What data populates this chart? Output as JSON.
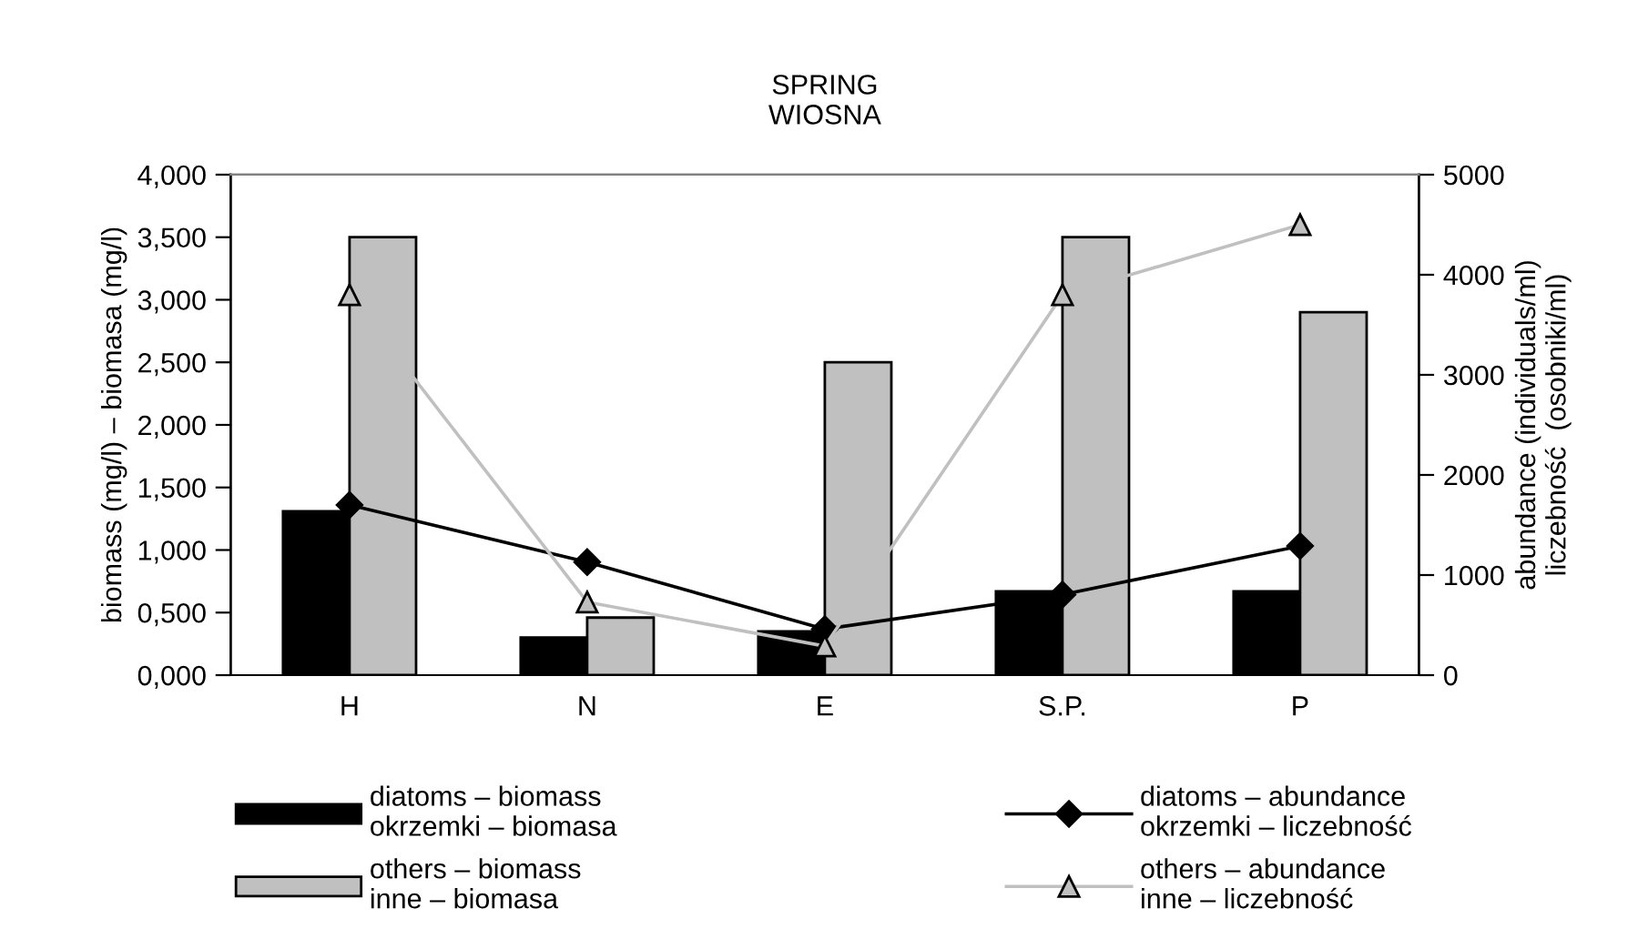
{
  "chart_data": {
    "type": "bar",
    "title": "SPRING\nWIOSNA",
    "ylabel": "biomass (mg/l) – biomasa (mg/l)",
    "y2label": "abundance (individuals/ml)\nliczebność  (osobniki/ml)",
    "categories": [
      "H",
      "N",
      "E",
      "S.P.",
      "P"
    ],
    "series": [
      {
        "name": "diatoms – biomass\nokrzemki – biomasa",
        "color": "#000000",
        "values": [
          1.31,
          0.3,
          0.35,
          0.67,
          0.67
        ]
      },
      {
        "name": "others – biomass\ninne – biomasa",
        "color": "#c0c0c0",
        "values": [
          3.5,
          0.46,
          2.5,
          3.5,
          2.9
        ]
      },
      {
        "name": "diatoms – abundance\nokrzemki – liczebność",
        "type": "line",
        "axis": "y2",
        "marker": "diamond",
        "color": "#000000",
        "values": [
          1700,
          1130,
          460,
          805,
          1290
        ]
      },
      {
        "name": "others – abundance\ninne – liczebność",
        "type": "line",
        "axis": "y2",
        "marker": "triangle",
        "color": "#c0c0c0",
        "values": [
          3800,
          730,
          290,
          3800,
          4500
        ]
      }
    ],
    "ylim": [
      0,
      4
    ],
    "yticks": [
      {
        "value": 0,
        "label": "0,000"
      },
      {
        "value": 0.5,
        "label": "0,500"
      },
      {
        "value": 1,
        "label": "1,000"
      },
      {
        "value": 1.5,
        "label": "1,500"
      },
      {
        "value": 2,
        "label": "2,000"
      },
      {
        "value": 2.5,
        "label": "2,500"
      },
      {
        "value": 3,
        "label": "3,000"
      },
      {
        "value": 3.5,
        "label": "3,500"
      },
      {
        "value": 4,
        "label": "4,000"
      }
    ],
    "y2lim": [
      0,
      5000
    ],
    "y2ticks": [
      0,
      1000,
      2000,
      3000,
      4000,
      5000
    ],
    "grid": false,
    "legend": "bottom"
  }
}
